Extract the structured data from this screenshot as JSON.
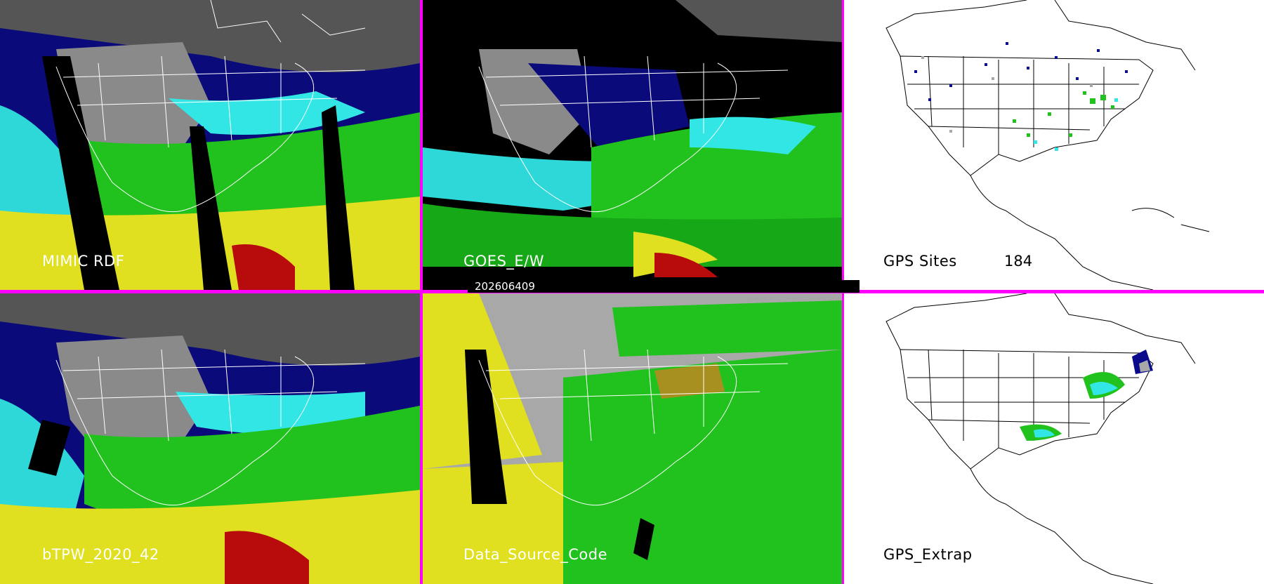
{
  "panels": {
    "mimic": {
      "label": "MIMIC RDF"
    },
    "goes": {
      "label": "GOES_E/W"
    },
    "gps_sites": {
      "label": "GPS Sites",
      "count": "184"
    },
    "btpw": {
      "label": "bTPW_2020_42"
    },
    "source_code": {
      "label": "Data_Source_Code"
    },
    "gps_extrap": {
      "label": "GPS_Extrap"
    }
  },
  "timestamp": "202606409",
  "colors": {
    "divider": "#ff00ff",
    "background_white": "#ffffff",
    "navy": "#0a0a8c",
    "cyan": "#33e6e6",
    "green": "#22c21e",
    "yellow": "#e0e020",
    "red": "#b80c0c",
    "gray": "#a8a8a8",
    "olive": "#a89020"
  }
}
